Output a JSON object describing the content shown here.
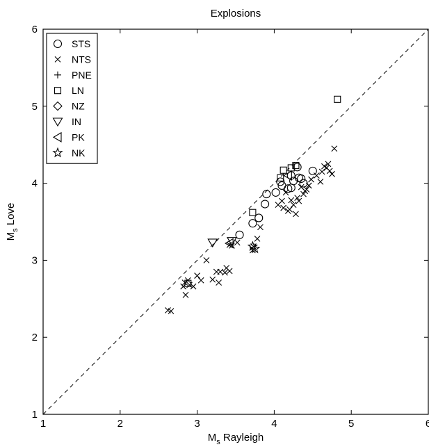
{
  "chart_data": {
    "type": "scatter",
    "title": "Explosions",
    "xlabel": {
      "main": "M",
      "sub": "s",
      "rest": " Rayleigh"
    },
    "ylabel": {
      "main": "M",
      "sub": "s",
      "rest": " Love"
    },
    "xlim": [
      1,
      6
    ],
    "ylim": [
      1,
      6
    ],
    "x_ticks": [
      1,
      2,
      3,
      4,
      5,
      6
    ],
    "y_ticks": [
      1,
      2,
      3,
      4,
      5,
      6
    ],
    "reference_line": {
      "style": "dashed",
      "from": [
        1,
        1
      ],
      "to": [
        6,
        6
      ]
    },
    "legend_position": "top-left",
    "grid": false,
    "series": [
      {
        "name": "STS",
        "marker": "circle",
        "points": [
          [
            3.55,
            3.33
          ],
          [
            3.72,
            3.48
          ],
          [
            3.8,
            3.55
          ],
          [
            3.88,
            3.73
          ],
          [
            3.9,
            3.86
          ],
          [
            4.02,
            3.88
          ],
          [
            4.08,
            4.02
          ],
          [
            4.1,
            3.97
          ],
          [
            4.18,
            3.93
          ],
          [
            4.22,
            3.94
          ],
          [
            4.22,
            4.1
          ],
          [
            4.25,
            4.03
          ],
          [
            4.3,
            4.21
          ],
          [
            4.32,
            4.07
          ],
          [
            4.35,
            4.06
          ],
          [
            4.38,
            4.0
          ],
          [
            4.5,
            4.16
          ]
        ]
      },
      {
        "name": "NTS",
        "marker": "x",
        "points": [
          [
            2.62,
            2.35
          ],
          [
            2.66,
            2.34
          ],
          [
            2.82,
            2.66
          ],
          [
            2.84,
            2.71
          ],
          [
            2.85,
            2.55
          ],
          [
            2.88,
            2.74
          ],
          [
            2.9,
            2.68
          ],
          [
            2.95,
            2.66
          ],
          [
            3.0,
            2.8
          ],
          [
            3.05,
            2.74
          ],
          [
            3.12,
            3.0
          ],
          [
            3.2,
            2.75
          ],
          [
            3.25,
            2.85
          ],
          [
            3.3,
            2.85
          ],
          [
            3.28,
            2.71
          ],
          [
            3.36,
            2.84
          ],
          [
            3.38,
            2.9
          ],
          [
            3.42,
            2.86
          ],
          [
            3.42,
            3.2
          ],
          [
            3.45,
            3.19
          ],
          [
            3.52,
            3.23
          ],
          [
            3.72,
            3.13
          ],
          [
            3.73,
            3.18
          ],
          [
            3.78,
            3.28
          ],
          [
            3.82,
            3.43
          ],
          [
            4.05,
            3.72
          ],
          [
            4.1,
            3.77
          ],
          [
            4.12,
            3.68
          ],
          [
            4.15,
            3.88
          ],
          [
            4.18,
            3.64
          ],
          [
            4.2,
            3.66
          ],
          [
            4.22,
            3.78
          ],
          [
            4.25,
            3.72
          ],
          [
            4.28,
            3.6
          ],
          [
            4.3,
            3.81
          ],
          [
            4.32,
            3.77
          ],
          [
            4.35,
            3.95
          ],
          [
            4.38,
            3.86
          ],
          [
            4.4,
            3.9
          ],
          [
            4.42,
            3.92
          ],
          [
            4.45,
            3.97
          ],
          [
            4.48,
            4.05
          ],
          [
            4.55,
            4.1
          ],
          [
            4.6,
            4.02
          ],
          [
            4.62,
            4.15
          ],
          [
            4.65,
            4.22
          ],
          [
            4.68,
            4.2
          ],
          [
            4.7,
            4.25
          ],
          [
            4.72,
            4.16
          ],
          [
            4.75,
            4.12
          ],
          [
            4.78,
            4.45
          ]
        ]
      },
      {
        "name": "PNE",
        "marker": "plus",
        "points": []
      },
      {
        "name": "LN",
        "marker": "square",
        "points": [
          [
            2.88,
            2.7
          ],
          [
            3.72,
            3.62
          ],
          [
            4.08,
            4.07
          ],
          [
            4.12,
            4.17
          ],
          [
            4.22,
            4.2
          ],
          [
            4.28,
            4.23
          ],
          [
            4.82,
            5.09
          ]
        ]
      },
      {
        "name": "NZ",
        "marker": "diamond",
        "points": []
      },
      {
        "name": "IN",
        "marker": "triangle-down",
        "points": [
          [
            3.2,
            3.23
          ],
          [
            3.45,
            3.25
          ]
        ]
      },
      {
        "name": "PK",
        "marker": "triangle-left",
        "points": [
          [
            3.42,
            3.22
          ],
          [
            4.18,
            4.1
          ]
        ]
      },
      {
        "name": "NK",
        "marker": "star",
        "points": [
          [
            3.72,
            3.18
          ],
          [
            3.75,
            3.15
          ]
        ]
      }
    ]
  }
}
